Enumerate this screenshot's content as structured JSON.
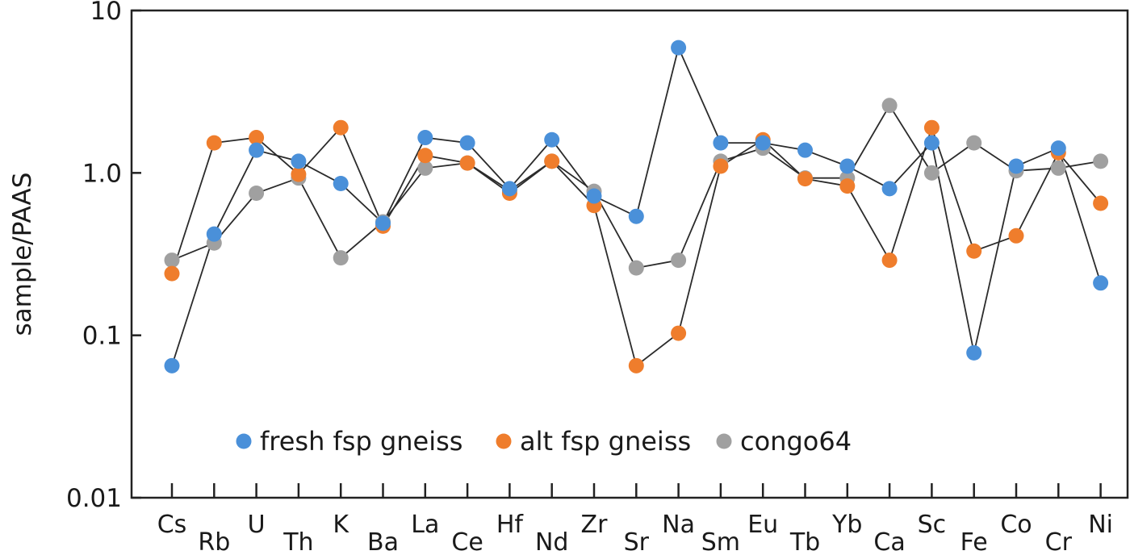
{
  "chart_data": {
    "type": "scatter",
    "title": "",
    "xlabel": "",
    "ylabel": "sample/PAAS",
    "yscale": "log",
    "ylim": [
      0.01,
      10
    ],
    "yticks": [
      {
        "value": 10,
        "label": "10"
      },
      {
        "value": 1,
        "label": "1.0"
      },
      {
        "value": 0.1,
        "label": "0.1"
      },
      {
        "value": 0.01,
        "label": "0.01"
      }
    ],
    "grid": false,
    "legend_position": "bottom-center",
    "categories": [
      "Cs",
      "Rb",
      "U",
      "Th",
      "K",
      "Ba",
      "La",
      "Ce",
      "Hf",
      "Nd",
      "Zr",
      "Sr",
      "Na",
      "Sm",
      "Eu",
      "Tb",
      "Yb",
      "Ca",
      "Sc",
      "Fe",
      "Co",
      "Cr",
      "Ni"
    ],
    "series": [
      {
        "name": "fresh fsp gneiss",
        "color": "#4a90d9",
        "values": [
          0.065,
          0.42,
          1.38,
          1.18,
          0.86,
          0.49,
          1.65,
          1.53,
          0.8,
          1.6,
          0.72,
          0.54,
          5.9,
          1.53,
          1.53,
          1.38,
          1.1,
          0.8,
          1.53,
          0.078,
          1.1,
          1.42,
          0.21
        ]
      },
      {
        "name": "alt fsp gneiss",
        "color": "#ef7d2c",
        "values": [
          0.24,
          1.53,
          1.65,
          0.98,
          1.9,
          0.47,
          1.28,
          1.15,
          0.75,
          1.18,
          0.63,
          0.065,
          0.103,
          1.1,
          1.6,
          0.92,
          0.83,
          0.29,
          1.9,
          0.33,
          0.41,
          1.33,
          0.65
        ]
      },
      {
        "name": "congo64",
        "color": "#a0a0a0",
        "values": [
          0.29,
          0.37,
          0.75,
          0.93,
          0.3,
          0.5,
          1.07,
          1.15,
          0.78,
          1.18,
          0.77,
          0.26,
          0.29,
          1.18,
          1.42,
          0.93,
          0.93,
          2.6,
          1.0,
          1.53,
          1.03,
          1.07,
          1.18
        ]
      }
    ]
  }
}
